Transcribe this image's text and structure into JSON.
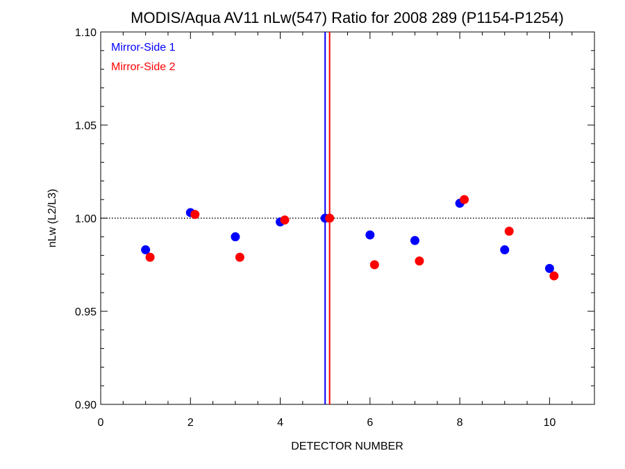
{
  "chart_data": {
    "type": "scatter",
    "title": "MODIS/Aqua AV11 nLw(547) Ratio for 2008 289 (P1154-P1254)",
    "xlabel": "DETECTOR NUMBER",
    "ylabel": "nLw (L2/L3)",
    "xlim": [
      0,
      11
    ],
    "ylim": [
      0.9,
      1.1
    ],
    "xticks": [
      0,
      2,
      4,
      6,
      8,
      10
    ],
    "xtick_labels": [
      "0",
      "2",
      "4",
      "6",
      "8",
      "10"
    ],
    "yticks": [
      0.9,
      0.95,
      1.0,
      1.05,
      1.1
    ],
    "ytick_labels": [
      "0.90",
      "0.95",
      "1.00",
      "1.05",
      "1.10"
    ],
    "reference_line_y": 1.0,
    "grid": false,
    "legend_position": "top-left",
    "series": [
      {
        "name": "Mirror-Side 1",
        "color": "#0000ff",
        "x": [
          1,
          2,
          3,
          4,
          5,
          6,
          7,
          8,
          9,
          10
        ],
        "values": [
          0.983,
          1.003,
          0.99,
          0.998,
          1.0,
          0.991,
          0.988,
          1.008,
          0.983,
          0.973
        ],
        "vertical_line_x": 5.0
      },
      {
        "name": "Mirror-Side 2",
        "color": "#ff0000",
        "x": [
          1.1,
          2.1,
          3.1,
          4.1,
          5.1,
          6.1,
          7.1,
          8.1,
          9.1,
          10.1
        ],
        "values": [
          0.979,
          1.002,
          0.979,
          0.999,
          1.0,
          0.975,
          0.977,
          1.01,
          0.993,
          0.969
        ],
        "vertical_line_x": 5.1
      }
    ]
  }
}
